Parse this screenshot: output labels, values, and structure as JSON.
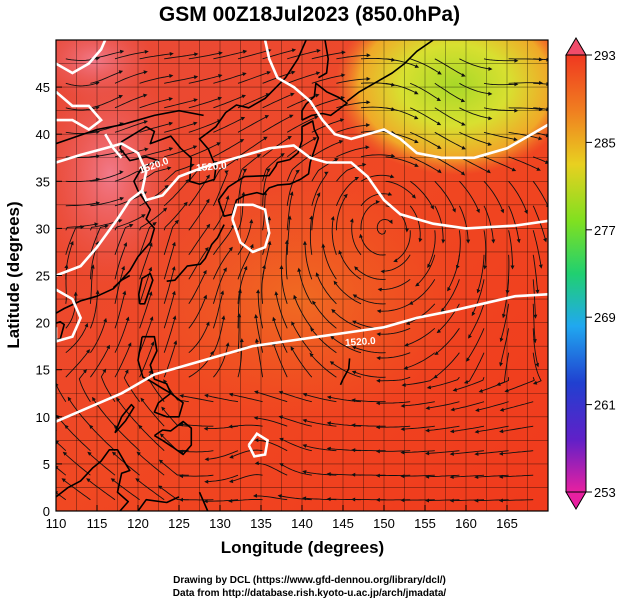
{
  "title": "GSM 00Z18Jul2023 (850.0hPa)",
  "x_axis": {
    "label": "Longitude (degrees)",
    "range": [
      110,
      170
    ],
    "ticks": [
      "110",
      "115",
      "120",
      "125",
      "130",
      "135",
      "140",
      "145",
      "150",
      "155",
      "160",
      "165"
    ]
  },
  "y_axis": {
    "label": "Latitude  (degrees)",
    "range": [
      0,
      50
    ],
    "ticks": [
      "0",
      "5",
      "10",
      "15",
      "20",
      "25",
      "30",
      "35",
      "40",
      "45"
    ]
  },
  "colorbar": {
    "ticks": [
      "293",
      "285",
      "277",
      "269",
      "261",
      "253"
    ],
    "range": [
      253,
      293
    ],
    "colors": [
      "#e8206e",
      "#3020c8",
      "#20a8f0",
      "#20d070",
      "#c0e020",
      "#f0a020",
      "#f04020"
    ]
  },
  "contour_labels": [
    "1520.0",
    "1520.0",
    "1520.0"
  ],
  "credit": {
    "line1": "Drawing by DCL (https://www.gfd-dennou.org/library/dcl/)",
    "line2": "Data from http://database.rish.kyoto-u.ac.jp/arch/jmadata/"
  },
  "colors": {
    "background": "#ffffff",
    "field_warm": "#f04020",
    "field_cool": "#c8e020",
    "contour": "#ffffff",
    "coast": "#000000"
  }
}
